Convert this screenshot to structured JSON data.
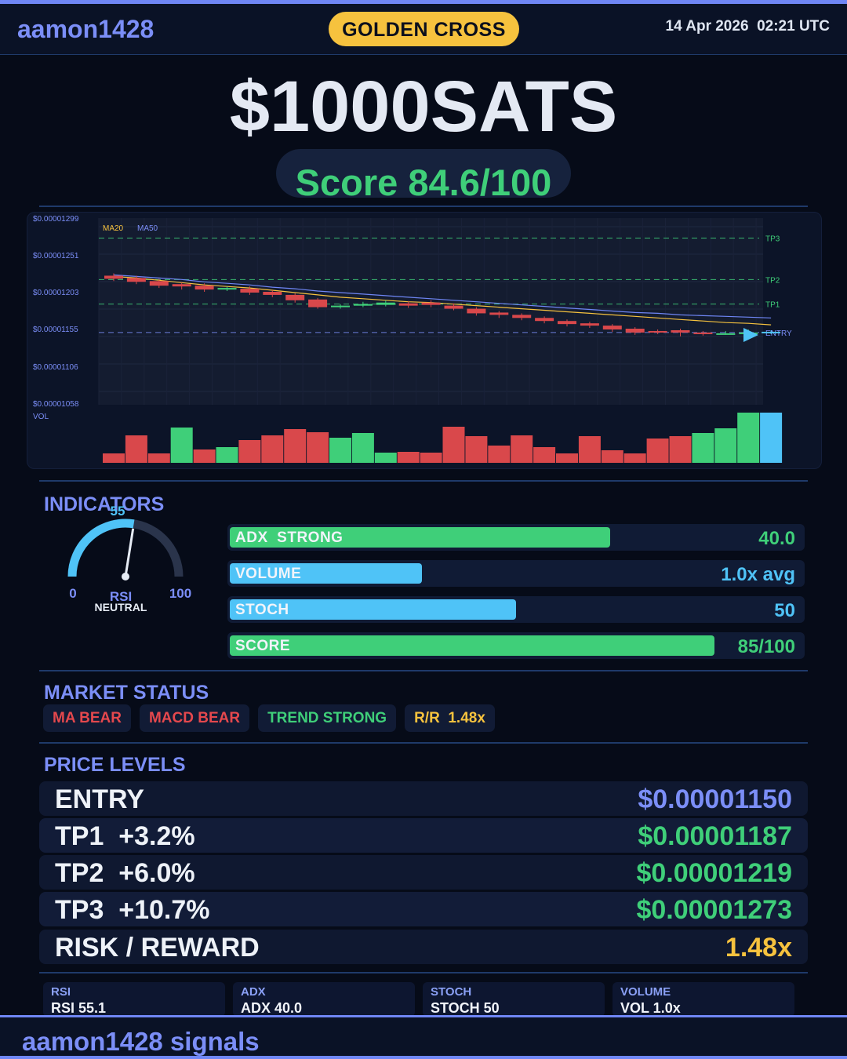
{
  "header": {
    "brand": "aamon1428",
    "signal": "GOLDEN CROSS",
    "datetime": "14 Apr 2026  02:21 UTC"
  },
  "ticker": "$1000SATS",
  "score_text": "Score 84.6/100",
  "chart_data": {
    "type": "candlestick",
    "y_ticks": [
      "$0.00001299",
      "$0.00001251",
      "$0.00001203",
      "$0.00001155",
      "$0.00001106",
      "$0.00001058"
    ],
    "y_tick_values": [
      1.299e-05,
      1.251e-05,
      1.203e-05,
      1.155e-05,
      1.106e-05,
      1.058e-05
    ],
    "ylim": [
      1.058e-05,
      1.299e-05
    ],
    "legend": [
      "MA20",
      "MA50"
    ],
    "legend_position": "top-left",
    "grid": true,
    "volume_label": "VOL",
    "candles": [
      {
        "o": 1.224e-05,
        "c": 1.22e-05,
        "h": 1.227e-05,
        "l": 1.217e-05
      },
      {
        "o": 1.221e-05,
        "c": 1.216e-05,
        "h": 1.224e-05,
        "l": 1.213e-05
      },
      {
        "o": 1.217e-05,
        "c": 1.211e-05,
        "h": 1.22e-05,
        "l": 1.208e-05
      },
      {
        "o": 1.213e-05,
        "c": 1.21e-05,
        "h": 1.215e-05,
        "l": 1.206e-05
      },
      {
        "o": 1.211e-05,
        "c": 1.206e-05,
        "h": 1.214e-05,
        "l": 1.203e-05
      },
      {
        "o": 1.206e-05,
        "c": 1.208e-05,
        "h": 1.21e-05,
        "l": 1.204e-05
      },
      {
        "o": 1.207e-05,
        "c": 1.202e-05,
        "h": 1.21e-05,
        "l": 1.199e-05
      },
      {
        "o": 1.203e-05,
        "c": 1.199e-05,
        "h": 1.205e-05,
        "l": 1.196e-05
      },
      {
        "o": 1.199e-05,
        "c": 1.192e-05,
        "h": 1.201e-05,
        "l": 1.189e-05
      },
      {
        "o": 1.193e-05,
        "c": 1.183e-05,
        "h": 1.195e-05,
        "l": 1.181e-05
      },
      {
        "o": 1.183e-05,
        "c": 1.185e-05,
        "h": 1.187e-05,
        "l": 1.181e-05
      },
      {
        "o": 1.185e-05,
        "c": 1.187e-05,
        "h": 1.19e-05,
        "l": 1.183e-05
      },
      {
        "o": 1.186e-05,
        "c": 1.189e-05,
        "h": 1.192e-05,
        "l": 1.184e-05
      },
      {
        "o": 1.188e-05,
        "c": 1.185e-05,
        "h": 1.191e-05,
        "l": 1.182e-05
      },
      {
        "o": 1.189e-05,
        "c": 1.186e-05,
        "h": 1.192e-05,
        "l": 1.183e-05
      },
      {
        "o": 1.185e-05,
        "c": 1.181e-05,
        "h": 1.188e-05,
        "l": 1.179e-05
      },
      {
        "o": 1.181e-05,
        "c": 1.175e-05,
        "h": 1.183e-05,
        "l": 1.172e-05
      },
      {
        "o": 1.176e-05,
        "c": 1.173e-05,
        "h": 1.178e-05,
        "l": 1.169e-05
      },
      {
        "o": 1.173e-05,
        "c": 1.169e-05,
        "h": 1.175e-05,
        "l": 1.166e-05
      },
      {
        "o": 1.169e-05,
        "c": 1.165e-05,
        "h": 1.171e-05,
        "l": 1.162e-05
      },
      {
        "o": 1.165e-05,
        "c": 1.161e-05,
        "h": 1.167e-05,
        "l": 1.158e-05
      },
      {
        "o": 1.162e-05,
        "c": 1.159e-05,
        "h": 1.164e-05,
        "l": 1.156e-05
      },
      {
        "o": 1.159e-05,
        "c": 1.154e-05,
        "h": 1.161e-05,
        "l": 1.151e-05
      },
      {
        "o": 1.155e-05,
        "c": 1.15e-05,
        "h": 1.157e-05,
        "l": 1.147e-05
      },
      {
        "o": 1.152e-05,
        "c": 1.151e-05,
        "h": 1.154e-05,
        "l": 1.148e-05
      },
      {
        "o": 1.153e-05,
        "c": 1.15e-05,
        "h": 1.155e-05,
        "l": 1.145e-05
      },
      {
        "o": 1.15e-05,
        "c": 1.148e-05,
        "h": 1.152e-05,
        "l": 1.146e-05
      },
      {
        "o": 1.148e-05,
        "c": 1.149e-05,
        "h": 1.152e-05,
        "l": 1.147e-05
      },
      {
        "o": 1.149e-05,
        "c": 1.15e-05,
        "h": 1.154e-05,
        "l": 1.147e-05
      },
      {
        "o": 1.149e-05,
        "c": 1.151e-05,
        "h": 1.153e-05,
        "l": 1.148e-05
      }
    ],
    "ma20": [
      1.223e-05,
      1.221e-05,
      1.218e-05,
      1.215e-05,
      1.212e-05,
      1.21e-05,
      1.208e-05,
      1.205e-05,
      1.202e-05,
      1.199e-05,
      1.196e-05,
      1.194e-05,
      1.192e-05,
      1.19e-05,
      1.189e-05,
      1.187e-05,
      1.185e-05,
      1.183e-05,
      1.181e-05,
      1.179e-05,
      1.177e-05,
      1.175e-05,
      1.173e-05,
      1.171e-05,
      1.169e-05,
      1.167e-05,
      1.165e-05,
      1.163e-05,
      1.162e-05,
      1.16e-05
    ],
    "ma50": [
      1.225e-05,
      1.223e-05,
      1.221e-05,
      1.219e-05,
      1.216e-05,
      1.214e-05,
      1.212e-05,
      1.209e-05,
      1.207e-05,
      1.204e-05,
      1.202e-05,
      1.2e-05,
      1.198e-05,
      1.196e-05,
      1.194e-05,
      1.192e-05,
      1.19e-05,
      1.188e-05,
      1.186e-05,
      1.184e-05,
      1.182e-05,
      1.18e-05,
      1.178e-05,
      1.176e-05,
      1.175e-05,
      1.173e-05,
      1.172e-05,
      1.171e-05,
      1.17e-05,
      1.169e-05
    ],
    "volume": [
      12,
      35,
      12,
      45,
      17,
      20,
      29,
      35,
      43,
      39,
      32,
      38,
      13,
      14,
      13,
      46,
      34,
      22,
      35,
      20,
      12,
      34,
      16,
      12,
      31,
      34,
      38,
      44,
      64,
      64
    ],
    "volume_colors": [
      "#d9484b",
      "#d9484b",
      "#d9484b",
      "#3fcf79",
      "#d9484b",
      "#3fcf79",
      "#d9484b",
      "#d9484b",
      "#d9484b",
      "#d9484b",
      "#3fcf79",
      "#3fcf79",
      "#3fcf79",
      "#d9484b",
      "#d9484b",
      "#d9484b",
      "#d9484b",
      "#d9484b",
      "#d9484b",
      "#d9484b",
      "#d9484b",
      "#d9484b",
      "#d9484b",
      "#d9484b",
      "#d9484b",
      "#d9484b",
      "#3fcf79",
      "#3fcf79",
      "#3fcf79",
      "#4fc3f7"
    ],
    "levels": [
      {
        "label": "TP3",
        "value": 1.273e-05,
        "color": "#3fcf79"
      },
      {
        "label": "TP2",
        "value": 1.219e-05,
        "color": "#3fcf79"
      },
      {
        "label": "TP1",
        "value": 1.187e-05,
        "color": "#3fcf79"
      },
      {
        "label": "ENTRY",
        "value": 1.15e-05,
        "color": "#7b8ef7"
      }
    ]
  },
  "indicators": {
    "title": "INDICATORS",
    "rsi": {
      "value": 55,
      "value_label": "55",
      "min_label": "0",
      "max_label": "100",
      "name": "RSI",
      "status": "NEUTRAL"
    },
    "bars": [
      {
        "label": "ADX  STRONG",
        "value": "40.0",
        "fraction": 0.665,
        "color": "#3fcf79",
        "value_color": "#3fcf79"
      },
      {
        "label": "VOLUME",
        "value": "1.0x avg",
        "fraction": 0.335,
        "color": "#4fc3f7",
        "value_color": "#4fc3f7"
      },
      {
        "label": "STOCH",
        "value": "50",
        "fraction": 0.5,
        "color": "#4fc3f7",
        "value_color": "#4fc3f7"
      },
      {
        "label": "SCORE",
        "value": "85/100",
        "fraction": 0.846,
        "color": "#3fcf79",
        "value_color": "#3fcf79"
      }
    ]
  },
  "market_status": {
    "title": "MARKET STATUS",
    "badges": [
      {
        "label": "MA BEAR",
        "color": "#e5484d"
      },
      {
        "label": "MACD BEAR",
        "color": "#e5484d"
      },
      {
        "label": "TREND STRONG",
        "color": "#3fcf79"
      },
      {
        "label": "R/R  1.48x",
        "color": "#f6c23e"
      }
    ]
  },
  "price_levels": {
    "title": "PRICE LEVELS",
    "rows": [
      {
        "label": "ENTRY",
        "value": "$0.00001150",
        "value_color": "#7b8ef7"
      },
      {
        "label": "TP1  +3.2%",
        "value": "$0.00001187",
        "value_color": "#3fcf79"
      },
      {
        "label": "TP2  +6.0%",
        "value": "$0.00001219",
        "value_color": "#3fcf79"
      },
      {
        "label": "TP3  +10.7%",
        "value": "$0.00001273",
        "value_color": "#3fcf79"
      },
      {
        "label": "RISK / REWARD",
        "value": "1.48x",
        "value_color": "#f6c23e"
      }
    ]
  },
  "stats": [
    {
      "name": "RSI",
      "value": "RSI 55.1"
    },
    {
      "name": "ADX",
      "value": "ADX 40.0"
    },
    {
      "name": "STOCH",
      "value": "STOCH 50"
    },
    {
      "name": "VOLUME",
      "value": "VOL 1.0x"
    }
  ],
  "footer": {
    "brand": "aamon1428 signals"
  },
  "colors": {
    "accent": "#7b8ef7",
    "bull": "#3fcf79",
    "bear": "#d9484b",
    "cyan": "#4fc3f7",
    "gold": "#f6c23e"
  }
}
